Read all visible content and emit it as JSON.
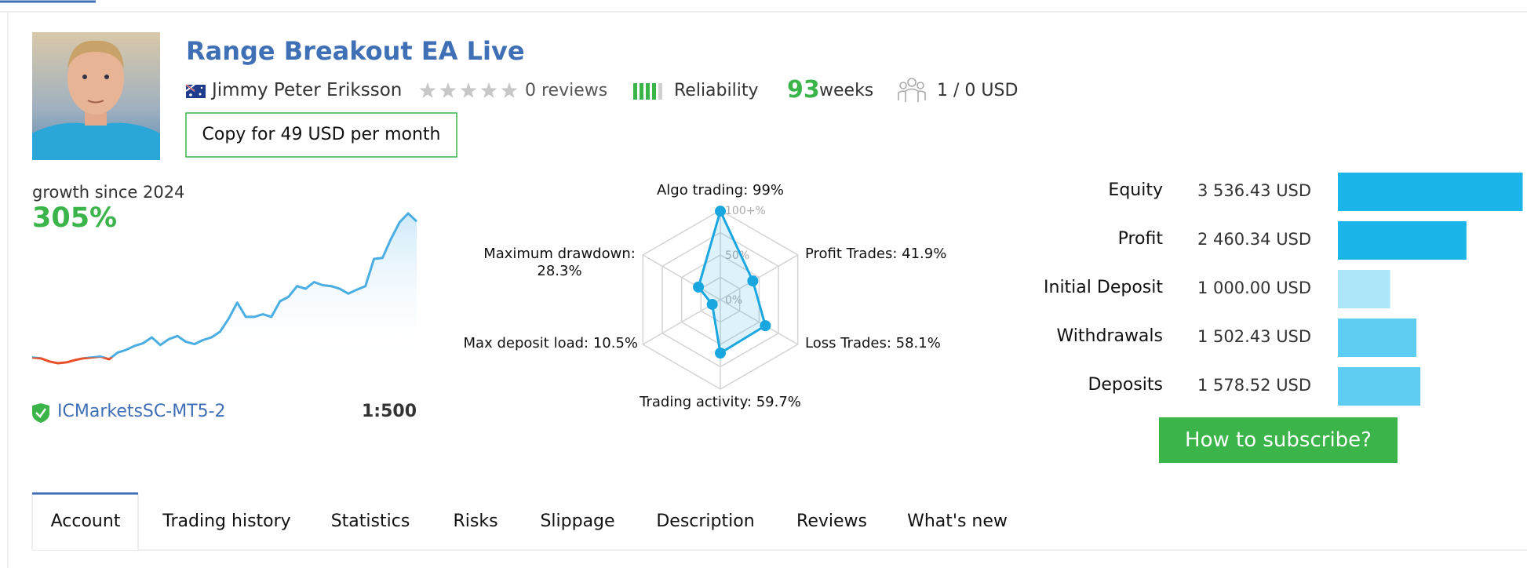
{
  "header": {
    "title": "Range Breakout EA Live",
    "author": "Jimmy Peter Eriksson",
    "reviews": "0 reviews",
    "reliability": "Reliability",
    "weeks_number": "93",
    "weeks_label": "weeks",
    "subscribers": "1 / 0 USD",
    "copy_button": "Copy for 49 USD per month"
  },
  "growth": {
    "type": "line",
    "label": "growth since 2024",
    "value_label": "305%",
    "color": "#4aaee2",
    "negative_color": "#e8502a",
    "values": [
      0,
      -2,
      -9,
      -13,
      -11,
      -6,
      -2,
      0,
      2,
      -4,
      11,
      17,
      26,
      32,
      45,
      28,
      41,
      48,
      35,
      30,
      39,
      45,
      58,
      87,
      123,
      91,
      91,
      97,
      91,
      126,
      136,
      160,
      154,
      169,
      162,
      160,
      154,
      143,
      152,
      160,
      221,
      223,
      266,
      303,
      323,
      305
    ],
    "broker": "ICMarketsSC-MT5-2",
    "leverage": "1:500"
  },
  "radar": {
    "type": "radar",
    "color": "#1aa7e0",
    "labels": [
      "Algo trading: 99%",
      "Profit Trades: 41.9%",
      "Loss Trades: 58.1%",
      "Trading activity: 59.7%",
      "Max deposit load: 10.5%",
      "Maximum drawdown: 28.3%"
    ],
    "values": [
      99,
      41.9,
      58.1,
      59.7,
      10.5,
      28.3
    ],
    "rlim": [
      0,
      100
    ],
    "rticks": [
      {
        "value": 0,
        "label": "0%"
      },
      {
        "value": 50,
        "label": "50%"
      },
      {
        "value": 100,
        "label": "100+%"
      }
    ]
  },
  "stats": {
    "type": "bar",
    "labels": [
      "Equity",
      "Profit",
      "Initial Deposit",
      "Withdrawals",
      "Deposits"
    ],
    "values": [
      3536.43,
      2460.34,
      1000.0,
      1502.43,
      1578.52
    ],
    "value_labels": [
      "3 536.43 USD",
      "2 460.34 USD",
      "1 000.00 USD",
      "1 502.43 USD",
      "1 578.52 USD"
    ],
    "colors": [
      "#1cb5ea",
      "#1cb5ea",
      "#aee6f9",
      "#5fcdf2",
      "#5fcdf2"
    ]
  },
  "subscribe_button": "How to subscribe?",
  "tabs": [
    "Account",
    "Trading history",
    "Statistics",
    "Risks",
    "Slippage",
    "Description",
    "Reviews",
    "What's new"
  ]
}
